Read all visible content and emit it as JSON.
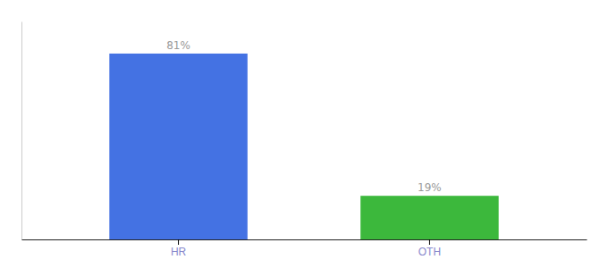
{
  "chart_data": {
    "type": "bar",
    "categories": [
      "HR",
      "OTH"
    ],
    "values": [
      81,
      19
    ],
    "value_labels": [
      "81%",
      "19%"
    ],
    "colors": [
      "#4472E3",
      "#3CB83C"
    ],
    "ylim": [
      0,
      95
    ],
    "data_labels": true,
    "tick_labels": "x",
    "grid": false
  }
}
